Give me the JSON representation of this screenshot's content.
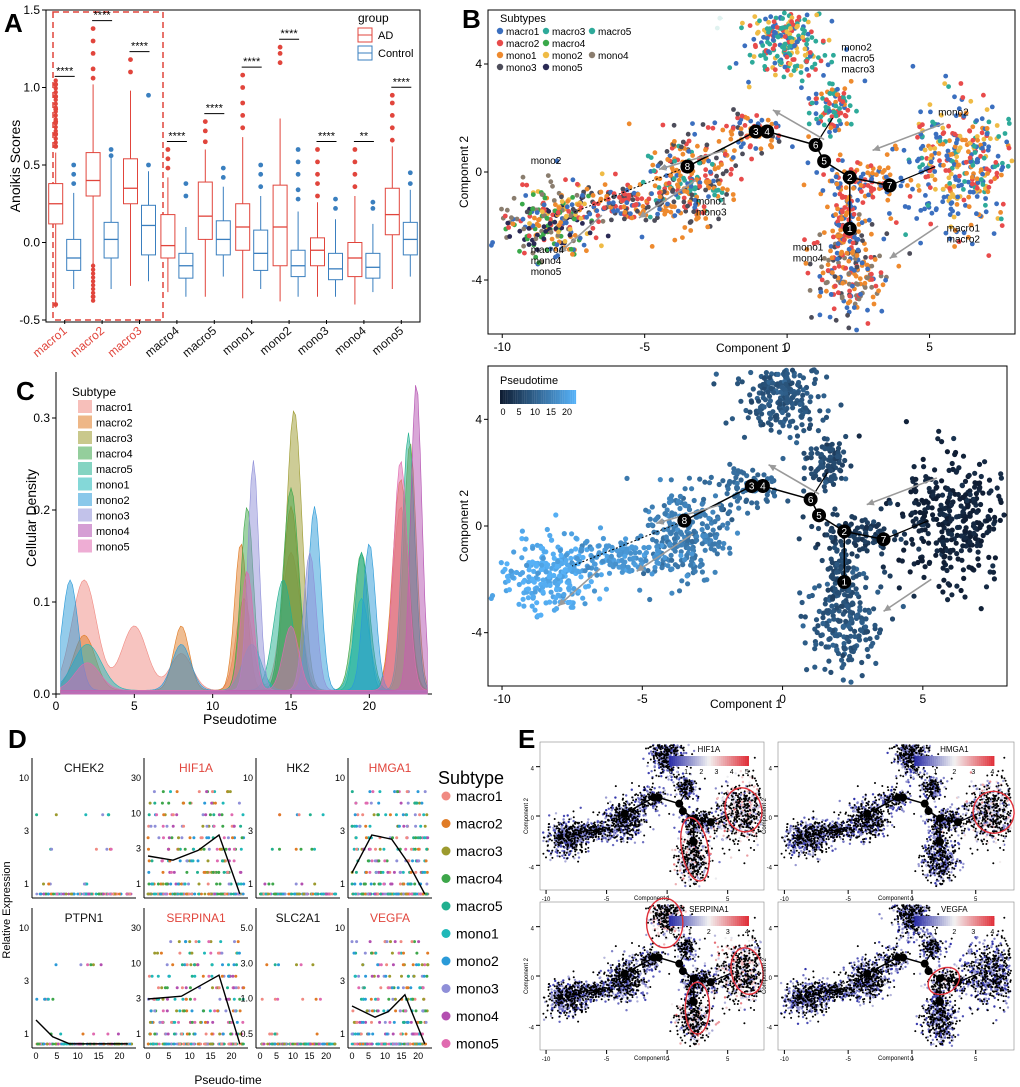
{
  "panels": {
    "A": "A",
    "B": "B",
    "C": "C",
    "D": "D",
    "E": "E"
  },
  "colors": {
    "ad": "#e1453c",
    "control": "#3a7fbf",
    "subtypes": {
      "macro1": "#f08a82",
      "macro2": "#e07b25",
      "macro3": "#9c9a2e",
      "macro4": "#3da64a",
      "macro5": "#21b08f",
      "mono1": "#1fb8b8",
      "mono2": "#2a9ad8",
      "mono3": "#8f8fd8",
      "mono4": "#b34fb0",
      "mono5": "#e06ab0"
    },
    "traj_subtypes": {
      "macro1": "#3b6fbf",
      "macro2": "#e84b4b",
      "macro3": "#2eaa9a",
      "macro4": "#3aa94a",
      "macro5": "#2eaa9a",
      "mono1": "#ee8a2e",
      "mono2": "#efbb45",
      "mono3": "#4d4d5a",
      "mono4": "#8a7d6e",
      "mono5": "#2a2a55"
    },
    "pseudo_dark": "#0f1d33",
    "pseudo_light": "#56b1f7",
    "heat_low": "#2b2ea8",
    "heat_mid": "#f2f2f2",
    "heat_high": "#e0303a"
  },
  "chart_data": [
    {
      "id": "A",
      "type": "box",
      "ylabel": "Anoikis Scores",
      "ylim": [
        -0.5,
        1.5
      ],
      "yticks": [
        "-0.5",
        "0.0",
        "0.5",
        "1.0",
        "1.5"
      ],
      "categories": [
        "macro1",
        "macro2",
        "macro3",
        "macro4",
        "macro5",
        "mono1",
        "mono2",
        "mono3",
        "mono4",
        "mono5"
      ],
      "highlighted": [
        "macro1",
        "macro2",
        "macro3"
      ],
      "legend": {
        "title": "group",
        "entries": [
          "AD",
          "Control"
        ]
      },
      "significance": [
        "****",
        "****",
        "****",
        "****",
        "****",
        "****",
        "****",
        "****",
        "**",
        "****"
      ],
      "series": [
        {
          "name": "AD",
          "boxes": [
            {
              "min": -0.42,
              "q1": 0.12,
              "median": 0.25,
              "q3": 0.38,
              "max": 0.58,
              "outliers": [
                0.62,
                0.7,
                0.78,
                0.86,
                0.94,
                1.02,
                -0.4
              ]
            },
            {
              "min": -0.38,
              "q1": 0.3,
              "median": 0.4,
              "q3": 0.58,
              "max": 1.02,
              "outliers": [
                1.06,
                1.12,
                1.22,
                1.3,
                1.38,
                -0.35
              ]
            },
            {
              "min": -0.28,
              "q1": 0.25,
              "median": 0.35,
              "q3": 0.54,
              "max": 0.98,
              "outliers": [
                1.1,
                1.18
              ]
            },
            {
              "min": -0.32,
              "q1": -0.1,
              "median": -0.02,
              "q3": 0.18,
              "max": 0.42,
              "outliers": [
                0.48,
                0.54,
                0.6
              ]
            },
            {
              "min": -0.35,
              "q1": 0.02,
              "median": 0.17,
              "q3": 0.39,
              "max": 0.6,
              "outliers": [
                0.65,
                0.72,
                0.78
              ]
            },
            {
              "min": -0.36,
              "q1": -0.05,
              "median": 0.1,
              "q3": 0.25,
              "max": 0.68,
              "outliers": [
                0.74,
                0.82,
                0.9,
                1.0,
                1.08
              ]
            },
            {
              "min": -0.38,
              "q1": -0.15,
              "median": 0.1,
              "q3": 0.37,
              "max": 0.8,
              "outliers": [
                1.16,
                1.22,
                1.26
              ]
            },
            {
              "min": -0.35,
              "q1": -0.15,
              "median": -0.05,
              "q3": 0.03,
              "max": 0.26,
              "outliers": [
                0.3,
                0.38,
                0.44,
                0.52,
                0.6
              ]
            },
            {
              "min": -0.4,
              "q1": -0.22,
              "median": -0.1,
              "q3": 0.0,
              "max": 0.3,
              "outliers": [
                0.36,
                0.44,
                0.52,
                0.6
              ]
            },
            {
              "min": -0.3,
              "q1": 0.05,
              "median": 0.18,
              "q3": 0.35,
              "max": 0.62,
              "outliers": [
                0.66,
                0.74,
                0.82,
                0.9,
                0.95
              ]
            }
          ]
        },
        {
          "name": "Control",
          "boxes": [
            {
              "min": -0.3,
              "q1": -0.18,
              "median": -0.1,
              "q3": 0.02,
              "max": 0.32,
              "outliers": [
                0.38,
                0.44,
                0.5
              ]
            },
            {
              "min": -0.3,
              "q1": -0.1,
              "median": 0.02,
              "q3": 0.13,
              "max": 0.55,
              "outliers": [
                0.6,
                0.56
              ]
            },
            {
              "min": -0.25,
              "q1": -0.08,
              "median": 0.11,
              "q3": 0.24,
              "max": 0.46,
              "outliers": [
                0.5,
                0.95
              ]
            },
            {
              "min": -0.35,
              "q1": -0.23,
              "median": -0.15,
              "q3": -0.07,
              "max": 0.1,
              "outliers": [
                0.3,
                0.38
              ]
            },
            {
              "min": -0.22,
              "q1": -0.08,
              "median": 0.02,
              "q3": 0.14,
              "max": 0.36,
              "outliers": [
                0.42,
                0.48
              ]
            },
            {
              "min": -0.3,
              "q1": -0.18,
              "median": -0.07,
              "q3": 0.08,
              "max": 0.3,
              "outliers": [
                0.36,
                0.44,
                0.5
              ]
            },
            {
              "min": -0.35,
              "q1": -0.22,
              "median": -0.15,
              "q3": -0.05,
              "max": 0.2,
              "outliers": [
                0.28,
                0.34,
                0.44,
                0.52,
                0.6
              ]
            },
            {
              "min": -0.35,
              "q1": -0.24,
              "median": -0.17,
              "q3": -0.07,
              "max": 0.15,
              "outliers": [
                0.22,
                0.28
              ]
            },
            {
              "min": -0.32,
              "q1": -0.23,
              "median": -0.16,
              "q3": -0.07,
              "max": 0.12,
              "outliers": [
                0.22,
                0.26
              ]
            },
            {
              "min": -0.22,
              "q1": -0.08,
              "median": 0.02,
              "q3": 0.13,
              "max": 0.34,
              "outliers": [
                0.38,
                0.45
              ]
            }
          ]
        }
      ]
    },
    {
      "id": "B",
      "type": "scatter",
      "title": "",
      "legend_title": "Subtypes",
      "legend_entries": [
        "macro1",
        "macro3",
        "macro5",
        "macro2",
        "macro4",
        "mono1",
        "mono2",
        "mono4",
        "mono3",
        "mono5"
      ],
      "xlabel": "Component 1",
      "ylabel": "Component 2",
      "xlim": [
        -10.5,
        8
      ],
      "ylim": [
        -6,
        6
      ],
      "xticks": [
        -10,
        -5,
        0,
        5
      ],
      "yticks": [
        -4,
        0,
        4
      ],
      "branch_points": [
        "1",
        "2",
        "3",
        "4",
        "5",
        "6",
        "7",
        "8"
      ],
      "annotations": [
        {
          "text": "mono2\nmacro5\nmacro3"
        },
        {
          "text": "mono2"
        },
        {
          "text": "mono2"
        },
        {
          "text": "mono1\nmono3"
        },
        {
          "text": "macro4\nmono4\nmono5"
        },
        {
          "text": "mono1\nmono4"
        },
        {
          "text": "macro1\nmacro2"
        }
      ]
    },
    {
      "id": "C",
      "type": "area",
      "legend_title": "Subtype",
      "categories": [
        "macro1",
        "macro2",
        "macro3",
        "macro4",
        "macro5",
        "mono1",
        "mono2",
        "mono3",
        "mono4",
        "mono5"
      ],
      "xlabel": "Pseudotime",
      "ylabel": "Cellular Density",
      "xlim": [
        0,
        24
      ],
      "ylim": [
        0,
        0.35
      ],
      "xticks": [
        0,
        5,
        10,
        15,
        20
      ],
      "yticks": [
        0.0,
        0.1,
        0.2,
        0.3
      ],
      "series": [
        {
          "name": "macro1",
          "peaks": [
            [
              1.8,
              0.12,
              0.8
            ],
            [
              5,
              0.07,
              0.8
            ],
            [
              8,
              0.04,
              0.7
            ],
            [
              12,
              0.1,
              0.5
            ],
            [
              15,
              0.15,
              0.6
            ],
            [
              22,
              0.2,
              0.5
            ]
          ]
        },
        {
          "name": "macro2",
          "peaks": [
            [
              1.8,
              0.06,
              0.7
            ],
            [
              8,
              0.07,
              0.5
            ],
            [
              11.8,
              0.16,
              0.4
            ],
            [
              15,
              0.2,
              0.5
            ],
            [
              22,
              0.23,
              0.5
            ]
          ]
        },
        {
          "name": "macro3",
          "peaks": [
            [
              15.2,
              0.305,
              0.5
            ],
            [
              22.6,
              0.27,
              0.4
            ]
          ]
        },
        {
          "name": "macro4",
          "peaks": [
            [
              12.2,
              0.2,
              0.4
            ],
            [
              15,
              0.22,
              0.5
            ],
            [
              19.5,
              0.15,
              0.5
            ]
          ]
        },
        {
          "name": "macro5",
          "peaks": [
            [
              14.5,
              0.12,
              0.6
            ],
            [
              19.5,
              0.15,
              0.4
            ],
            [
              22.5,
              0.28,
              0.4
            ]
          ]
        },
        {
          "name": "mono1",
          "peaks": [
            [
              2,
              0.05,
              0.9
            ],
            [
              12.5,
              0.05,
              0.6
            ],
            [
              19.5,
              0.1,
              0.5
            ]
          ]
        },
        {
          "name": "mono2",
          "peaks": [
            [
              0.9,
              0.12,
              0.5
            ],
            [
              8,
              0.05,
              0.6
            ],
            [
              16.5,
              0.2,
              0.4
            ],
            [
              20,
              0.16,
              0.4
            ]
          ]
        },
        {
          "name": "mono3",
          "peaks": [
            [
              12.6,
              0.25,
              0.35
            ],
            [
              16.2,
              0.15,
              0.4
            ]
          ]
        },
        {
          "name": "mono4",
          "peaks": [
            [
              23,
              0.335,
              0.35
            ]
          ]
        },
        {
          "name": "mono5",
          "peaks": [
            [
              2,
              0.03,
              0.8
            ],
            [
              12.2,
              0.13,
              0.4
            ],
            [
              15,
              0.07,
              0.5
            ],
            [
              22,
              0.25,
              0.45
            ]
          ]
        }
      ]
    },
    {
      "id": "B2",
      "type": "scatter",
      "legend_title": "Pseudotime",
      "legend_ticks": [
        "0",
        "5",
        "10",
        "15",
        "20"
      ],
      "xlabel": "Component 1",
      "ylabel": "Component 2",
      "xlim": [
        -10.5,
        8
      ],
      "ylim": [
        -6,
        6
      ],
      "xticks": [
        -10,
        -5,
        0,
        5
      ],
      "yticks": [
        -4,
        0,
        4
      ],
      "branch_points": [
        "1",
        "2",
        "3",
        "4",
        "5",
        "6",
        "7",
        "8"
      ]
    },
    {
      "id": "D",
      "type": "scatter",
      "xlabel": "Pseudo-time",
      "ylabel": "Relative Expression",
      "xticks": [
        0,
        5,
        10,
        15,
        20
      ],
      "legend_title": "Subtype",
      "legend_entries": [
        "macro1",
        "macro2",
        "macro3",
        "macro4",
        "macro5",
        "mono1",
        "mono2",
        "mono3",
        "mono4",
        "mono5"
      ],
      "genes": [
        {
          "name": "CHEK2",
          "highlight": false,
          "yticks": [
            "1",
            "3",
            "10"
          ]
        },
        {
          "name": "HIF1A",
          "highlight": true,
          "yticks": [
            "1",
            "3",
            "10",
            "30"
          ]
        },
        {
          "name": "HK2",
          "highlight": false,
          "yticks": [
            "1",
            "3",
            "10"
          ]
        },
        {
          "name": "HMGA1",
          "highlight": true,
          "yticks": [
            "1",
            "3",
            "10"
          ]
        },
        {
          "name": "PTPN1",
          "highlight": false,
          "yticks": [
            "1",
            "3",
            "10"
          ]
        },
        {
          "name": "SERPINA1",
          "highlight": true,
          "yticks": [
            "1",
            "3",
            "10",
            "30"
          ]
        },
        {
          "name": "SLC2A1",
          "highlight": false,
          "yticks": [
            "0.5",
            "1.0",
            "3.0",
            "5.0"
          ]
        },
        {
          "name": "VEGFA",
          "highlight": true,
          "yticks": [
            "1",
            "3",
            "10"
          ]
        }
      ]
    },
    {
      "id": "E",
      "type": "heatmap-scatter",
      "xlabel": "Component 1",
      "ylabel": "Component 2",
      "xticks": [
        -10,
        -5,
        0,
        5
      ],
      "yticks": [
        -4,
        0,
        4
      ],
      "genes": [
        {
          "name": "HIF1A",
          "scale": [
            "0",
            "1",
            "2",
            "3",
            "4",
            "5"
          ]
        },
        {
          "name": "HMGA1",
          "scale": [
            "0",
            "1",
            "2",
            "3",
            "4"
          ]
        },
        {
          "name": "SERPINA1",
          "scale": [
            "0",
            "1",
            "2",
            "3",
            "4"
          ]
        },
        {
          "name": "VEGFA",
          "scale": [
            "0",
            "1",
            "2",
            "3",
            "4"
          ]
        }
      ]
    }
  ]
}
